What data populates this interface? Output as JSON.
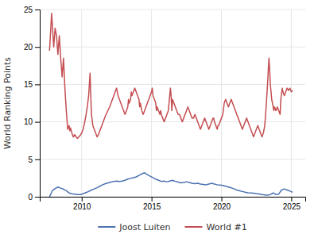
{
  "chart_data": {
    "type": "line",
    "ylabel": "World Ranking Points",
    "xlim": [
      2007,
      2026
    ],
    "xticks": [
      2010,
      2015,
      2020,
      2025
    ],
    "ylim": [
      0,
      25
    ],
    "yticks": [
      0,
      5,
      10,
      15,
      20,
      25
    ],
    "grid": true,
    "legend": "bottom",
    "series": [
      {
        "name": "Joost Luiten",
        "color": "#4c72b0",
        "x": [
          2007.7,
          2007.9,
          2008.1,
          2008.3,
          2008.5,
          2008.7,
          2008.9,
          2009.1,
          2009.3,
          2009.5,
          2009.7,
          2009.9,
          2010.1,
          2010.3,
          2010.5,
          2010.7,
          2010.9,
          2011.1,
          2011.3,
          2011.5,
          2011.7,
          2011.9,
          2012.1,
          2012.3,
          2012.5,
          2012.7,
          2012.9,
          2013.1,
          2013.3,
          2013.5,
          2013.7,
          2013.9,
          2014.1,
          2014.3,
          2014.5,
          2014.7,
          2014.9,
          2015.1,
          2015.3,
          2015.5,
          2015.7,
          2015.9,
          2016.1,
          2016.3,
          2016.5,
          2016.7,
          2016.9,
          2017.1,
          2017.3,
          2017.5,
          2017.7,
          2017.9,
          2018.1,
          2018.3,
          2018.5,
          2018.7,
          2018.9,
          2019.1,
          2019.3,
          2019.5,
          2019.7,
          2019.9,
          2020.1,
          2020.3,
          2020.5,
          2020.7,
          2020.9,
          2021.1,
          2021.3,
          2021.5,
          2021.7,
          2021.9,
          2022.1,
          2022.3,
          2022.5,
          2022.7,
          2022.9,
          2023.1,
          2023.3,
          2023.5,
          2023.7,
          2023.9,
          2024.1,
          2024.3,
          2024.5,
          2024.7,
          2024.9,
          2025.1
        ],
        "values": [
          0.0,
          0.8,
          1.1,
          1.3,
          1.15,
          1.0,
          0.8,
          0.5,
          0.4,
          0.35,
          0.3,
          0.3,
          0.4,
          0.55,
          0.7,
          0.9,
          1.05,
          1.2,
          1.4,
          1.6,
          1.75,
          1.85,
          1.95,
          2.05,
          2.1,
          2.05,
          2.1,
          2.2,
          2.35,
          2.45,
          2.55,
          2.65,
          2.85,
          3.05,
          3.2,
          2.95,
          2.75,
          2.55,
          2.35,
          2.2,
          2.05,
          2.1,
          2.0,
          2.1,
          2.2,
          2.05,
          1.95,
          1.85,
          1.9,
          2.0,
          1.9,
          1.8,
          1.75,
          1.8,
          1.7,
          1.65,
          1.6,
          1.7,
          1.8,
          1.7,
          1.6,
          1.55,
          1.5,
          1.4,
          1.3,
          1.2,
          1.05,
          0.9,
          0.8,
          0.7,
          0.6,
          0.52,
          0.5,
          0.48,
          0.42,
          0.38,
          0.3,
          0.25,
          0.2,
          0.3,
          0.5,
          0.3,
          0.35,
          0.9,
          1.05,
          0.9,
          0.75,
          0.6
        ]
      },
      {
        "name": "World #1",
        "color": "#c44e52",
        "x": [
          2007.7,
          2007.85,
          2008.0,
          2008.1,
          2008.2,
          2008.3,
          2008.4,
          2008.5,
          2008.6,
          2008.7,
          2008.8,
          2008.9,
          2009.0,
          2009.1,
          2009.15,
          2009.2,
          2009.3,
          2009.4,
          2009.5,
          2009.6,
          2009.7,
          2009.8,
          2009.9,
          2010.0,
          2010.1,
          2010.2,
          2010.3,
          2010.4,
          2010.5,
          2010.6,
          2010.65,
          2010.7,
          2010.8,
          2010.9,
          2011.0,
          2011.1,
          2011.2,
          2011.3,
          2011.4,
          2011.5,
          2011.6,
          2011.7,
          2011.8,
          2011.9,
          2012.0,
          2012.1,
          2012.2,
          2012.3,
          2012.4,
          2012.5,
          2012.6,
          2012.7,
          2012.8,
          2012.9,
          2013.0,
          2013.1,
          2013.2,
          2013.3,
          2013.35,
          2013.4,
          2013.5,
          2013.55,
          2013.6,
          2013.7,
          2013.8,
          2013.9,
          2014.0,
          2014.1,
          2014.15,
          2014.2,
          2014.3,
          2014.4,
          2014.5,
          2014.6,
          2014.7,
          2014.8,
          2014.9,
          2015.0,
          2015.05,
          2015.1,
          2015.2,
          2015.3,
          2015.35,
          2015.4,
          2015.5,
          2015.6,
          2015.65,
          2015.7,
          2015.8,
          2015.9,
          2016.0,
          2016.1,
          2016.2,
          2016.3,
          2016.35,
          2016.4,
          2016.45,
          2016.5,
          2016.6,
          2016.7,
          2016.8,
          2016.9,
          2017.0,
          2017.1,
          2017.2,
          2017.3,
          2017.4,
          2017.5,
          2017.6,
          2017.7,
          2017.8,
          2017.9,
          2018.0,
          2018.1,
          2018.2,
          2018.3,
          2018.4,
          2018.5,
          2018.6,
          2018.7,
          2018.8,
          2018.9,
          2019.0,
          2019.1,
          2019.2,
          2019.3,
          2019.4,
          2019.45,
          2019.5,
          2019.6,
          2019.7,
          2019.75,
          2019.8,
          2019.9,
          2020.0,
          2020.1,
          2020.2,
          2020.3,
          2020.4,
          2020.5,
          2020.6,
          2020.7,
          2020.8,
          2020.9,
          2021.0,
          2021.1,
          2021.2,
          2021.3,
          2021.4,
          2021.5,
          2021.6,
          2021.7,
          2021.8,
          2021.9,
          2022.0,
          2022.1,
          2022.2,
          2022.3,
          2022.4,
          2022.5,
          2022.6,
          2022.7,
          2022.8,
          2022.9,
          2023.0,
          2023.05,
          2023.1,
          2023.2,
          2023.3,
          2023.4,
          2023.45,
          2023.5,
          2023.6,
          2023.7,
          2023.75,
          2023.8,
          2023.9,
          2024.0,
          2024.1,
          2024.2,
          2024.25,
          2024.35,
          2024.4,
          2024.5,
          2024.6,
          2024.7,
          2024.8,
          2024.9,
          2025.0,
          2025.1
        ],
        "values": [
          19.5,
          24.5,
          20.0,
          22.5,
          21.5,
          19.0,
          21.5,
          18.5,
          16.0,
          18.5,
          14.5,
          11.5,
          9.0,
          9.5,
          8.8,
          9.2,
          8.5,
          8.0,
          8.3,
          8.0,
          7.8,
          8.0,
          8.2,
          8.5,
          9.0,
          9.8,
          10.8,
          12.0,
          13.5,
          16.5,
          13.5,
          11.0,
          9.5,
          9.0,
          8.5,
          8.0,
          8.3,
          8.8,
          9.3,
          9.8,
          10.3,
          10.8,
          11.2,
          11.6,
          12.0,
          12.5,
          13.0,
          13.5,
          14.0,
          14.5,
          13.5,
          13.0,
          12.5,
          12.0,
          11.5,
          11.0,
          11.5,
          12.0,
          13.0,
          12.5,
          13.0,
          14.0,
          13.5,
          14.0,
          14.5,
          14.0,
          13.5,
          13.0,
          12.0,
          12.5,
          11.5,
          11.0,
          11.5,
          12.0,
          12.5,
          13.0,
          13.5,
          14.0,
          14.5,
          13.5,
          13.0,
          12.5,
          11.5,
          12.0,
          11.5,
          11.0,
          11.5,
          11.0,
          10.5,
          10.0,
          10.5,
          11.0,
          11.5,
          13.5,
          14.5,
          13.5,
          11.5,
          13.0,
          12.5,
          12.0,
          11.5,
          11.0,
          11.0,
          10.5,
          10.0,
          10.5,
          11.0,
          11.5,
          12.0,
          11.5,
          11.0,
          10.5,
          10.5,
          11.0,
          10.5,
          10.0,
          9.5,
          9.0,
          9.5,
          10.0,
          10.5,
          10.0,
          9.5,
          9.0,
          9.5,
          10.0,
          10.5,
          10.5,
          10.0,
          9.5,
          9.0,
          9.5,
          9.5,
          10.0,
          10.5,
          11.0,
          12.5,
          13.0,
          12.5,
          12.0,
          12.5,
          13.0,
          12.5,
          12.0,
          11.5,
          11.0,
          10.5,
          10.0,
          9.5,
          9.0,
          9.5,
          10.0,
          10.5,
          10.0,
          9.5,
          9.0,
          8.5,
          8.0,
          8.5,
          9.0,
          9.5,
          9.0,
          8.5,
          8.0,
          8.5,
          9.0,
          9.5,
          12.0,
          15.0,
          18.5,
          17.0,
          15.0,
          13.0,
          12.0,
          11.5,
          12.0,
          11.5,
          12.0,
          11.5,
          11.0,
          13.0,
          14.5,
          14.0,
          13.5,
          14.0,
          14.5,
          14.2,
          14.5,
          14.0,
          14.2
        ]
      }
    ]
  }
}
